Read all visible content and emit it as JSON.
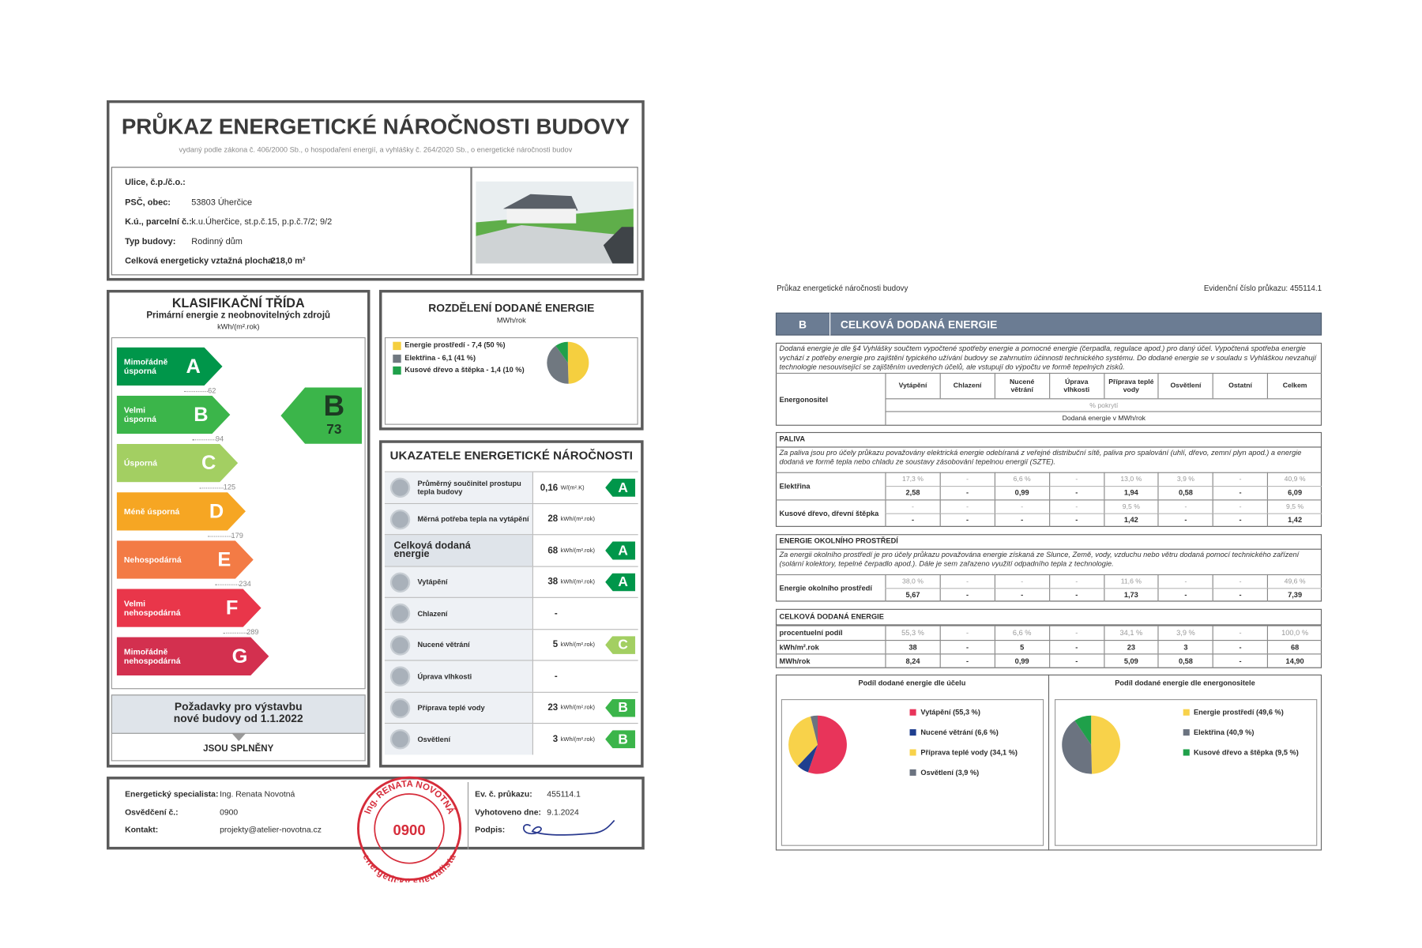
{
  "left": {
    "title": "PRŮKAZ ENERGETICKÉ NÁROČNOSTI BUDOVY",
    "subtitle": "vydaný podle zákona č. 406/2000 Sb., o hospodaření energií, a vyhlášky č. 264/2020 Sb., o energetické náročnosti budov",
    "address": [
      {
        "label": "Ulice, č.p./č.o.:"
      },
      {
        "label": "PSČ, obec:",
        "value": "53803 Úherčice"
      },
      {
        "label": "K.ú., parcelní č.:",
        "value": "k.u.Úherčice, st.p.č.15, p.p.č.7/2; 9/2"
      },
      {
        "label": "Typ budovy:",
        "value": "Rodinný dům"
      },
      {
        "label": "Celková energeticky vztažná plocha:",
        "value": "218,0 m²"
      }
    ],
    "classification": {
      "title": "KLASIFIKAČNÍ TŘÍDA",
      "subtitle": "Primární energie z neobnovitelných zdrojů",
      "unit": "kWh/(m².rok)",
      "classes": [
        {
          "letter": "A",
          "name": "Mimořádně\núsporná",
          "limit": 62,
          "color": "#00964a"
        },
        {
          "letter": "B",
          "name": "Velmi\núsporná",
          "limit": 94,
          "color": "#3bb54a"
        },
        {
          "letter": "C",
          "name": "Úsporná",
          "limit": 125,
          "color": "#a3cf62"
        },
        {
          "letter": "D",
          "name": "Méně úsporná",
          "limit": 179,
          "color": "#f6a623"
        },
        {
          "letter": "E",
          "name": "Nehospodárná",
          "limit": 234,
          "color": "#f37b45"
        },
        {
          "letter": "F",
          "name": "Velmi\nnehospodárná",
          "limit": 289,
          "color": "#e9364a"
        },
        {
          "letter": "G",
          "name": "Mimořádně\nnehospodárná",
          "color": "#d3304f"
        }
      ],
      "rating": {
        "letter": "B",
        "value": 73
      },
      "requirement": "Požadavky pro výstavbu\nnové budovy od 1.1.2022",
      "requirement_result": "JSOU SPLNĚNY"
    },
    "distribution": {
      "title": "ROZDĚLENÍ DODANÉ ENERGIE",
      "unit": "MWh/rok",
      "items": [
        {
          "label": "Energie prostředí - 7,4 (50 %)",
          "value": 50,
          "color": "#f5cf3f"
        },
        {
          "label": "Elektřina - 6,1 (41 %)",
          "value": 41,
          "color": "#707880"
        },
        {
          "label": "Kusové dřevo a štěpka - 1,4 (10 %)",
          "value": 10,
          "color": "#1fa04a"
        }
      ]
    },
    "indicators": {
      "title": "UKAZATELE ENERGETICKÉ NÁROČNOSTI",
      "rows": [
        {
          "label": "Průměrný součinitel prostupu tepla budovy",
          "value": "0,16",
          "unit": "W/(m².K)",
          "class": "A"
        },
        {
          "label": "Měrná potřeba tepla na vytápění",
          "value": "28",
          "unit": "kWh/(m².rok)"
        },
        {
          "label": "Celková dodaná energie",
          "value": "68",
          "unit": "kWh/(m².rok)",
          "class": "A"
        },
        {
          "label": "Vytápění",
          "value": "38",
          "unit": "kWh/(m².rok)",
          "class": "A"
        },
        {
          "label": "Chlazení",
          "value": "-"
        },
        {
          "label": "Nucené větrání",
          "value": "5",
          "unit": "kWh/(m².rok)",
          "class": "C"
        },
        {
          "label": "Úprava vlhkosti",
          "value": "-"
        },
        {
          "label": "Příprava teplé vody",
          "value": "23",
          "unit": "kWh/(m².rok)",
          "class": "B"
        },
        {
          "label": "Osvětlení",
          "value": "3",
          "unit": "kWh/(m².rok)",
          "class": "B"
        }
      ]
    },
    "signature": {
      "fields": [
        {
          "label": "Energetický specialista:",
          "value": "Ing. Renata Novotná"
        },
        {
          "label": "Osvědčení č.:",
          "value": "0900"
        },
        {
          "label": "Kontakt:",
          "value": "projekty@atelier-novotna.cz"
        }
      ],
      "fields_right": [
        {
          "label": "Ev. č. průkazu:",
          "value": "455114.1"
        },
        {
          "label": "Vyhotoveno dne:",
          "value": "9.1.2024"
        },
        {
          "label": "Podpis:"
        }
      ],
      "stamp": {
        "top": "Ing. RENATA NOVOTNÁ",
        "number": "0900",
        "bottom": "energetický specialista"
      }
    }
  },
  "right": {
    "header_left": "Průkaz energetické náročnosti budovy",
    "header_right": "Evidenční číslo průkazu: 455114.1",
    "section_letter": "B",
    "section_title": "CELKOVÁ DODANÁ ENERGIE",
    "intro": "Dodaná energie je dle §4 Vyhlášky součtem vypočtené spotřeby energie a pomocné energie (čerpadla, regulace apod.) pro daný účel. Vypočtená spotřeba energie vychází z potřeby energie pro zajištění typického užívání budovy se zahrnutím účinnosti technického systému. Do dodané energie se v souladu s Vyhláškou nevzahují technologie nesouvisející se zajištěním uvedených účelů, ale vstupují do výpočtu ve formě tepelných zisků.",
    "table_header": {
      "first": "Energonositel",
      "columns": [
        "Vytápění",
        "Chlazení",
        "Nucené větrání",
        "Úprava vlhkosti",
        "Příprava teplé vody",
        "Osvětlení",
        "Ostatní",
        "Celkem"
      ],
      "sub1": "% pokrytí",
      "sub2": "Dodaná energie v MWh/rok"
    },
    "sections": [
      {
        "title": "PALIVA",
        "note": "Za paliva jsou pro účely průkazu považovány elektrická energie odebíraná z veřejné distribuční sítě, paliva pro spalování (uhlí, dřevo, zemní plyn apod.) a energie dodaná ve formě tepla nebo chladu ze soustavy zásobování tepelnou energií (SZTE).",
        "rows": [
          {
            "label": "Elektřina",
            "pct": [
              "17,3 %",
              "-",
              "6,6 %",
              "-",
              "13,0 %",
              "3,9 %",
              "-",
              "40,9 %"
            ],
            "values": [
              "2,58",
              "-",
              "0,99",
              "-",
              "1,94",
              "0,58",
              "-",
              "6,09"
            ]
          },
          {
            "label": "Kusové dřevo, dřevní štěpka",
            "pct": [
              "-",
              "-",
              "-",
              "-",
              "9,5 %",
              "-",
              "-",
              "9,5 %"
            ],
            "values": [
              "-",
              "-",
              "-",
              "-",
              "1,42",
              "-",
              "-",
              "1,42"
            ]
          }
        ]
      },
      {
        "title": "ENERGIE OKOLNÍHO PROSTŘEDÍ",
        "note": "Za energii okolního prostředí je pro účely průkazu považována energie získaná ze Slunce, Země, vody, vzduchu nebo větru dodaná pomocí technického zařízení (solární kolektory, tepelné čerpadlo apod.). Dále je sem zařazeno využití odpadního tepla z technologie.",
        "rows": [
          {
            "label": "Energie okolního prostředí",
            "pct": [
              "38,0 %",
              "-",
              "-",
              "-",
              "11,6 %",
              "-",
              "-",
              "49,6 %"
            ],
            "values": [
              "5,67",
              "-",
              "-",
              "-",
              "1,73",
              "-",
              "-",
              "7,39"
            ]
          }
        ]
      }
    ],
    "total": {
      "title": "CELKOVÁ DODANÁ ENERGIE",
      "rows": [
        {
          "label": "procentuelní podíl",
          "values": [
            "55,3 %",
            "-",
            "6,6 %",
            "-",
            "34,1 %",
            "3,9 %",
            "-",
            "100,0 %"
          ]
        },
        {
          "label": "kWh/m².rok",
          "values": [
            "38",
            "-",
            "5",
            "-",
            "23",
            "3",
            "-",
            "68"
          ]
        },
        {
          "label": "MWh/rok",
          "values": [
            "8,24",
            "-",
            "0,99",
            "-",
            "5,09",
            "0,58",
            "-",
            "14,90"
          ]
        }
      ]
    },
    "pies": [
      {
        "title": "Podíl dodané energie dle účelu",
        "items": [
          {
            "label": "Vytápění (55,3 %)",
            "value": 55.3,
            "color": "#e8345a"
          },
          {
            "label": "Nucené větrání (6,6 %)",
            "value": 6.6,
            "color": "#1f3f8f"
          },
          {
            "label": "Příprava teplé vody (34,1 %)",
            "value": 34.1,
            "color": "#f8d24a"
          },
          {
            "label": "Osvětlení (3,9 %)",
            "value": 3.9,
            "color": "#6b7380"
          }
        ]
      },
      {
        "title": "Podíl dodané energie dle energonositele",
        "items": [
          {
            "label": "Energie prostředí (49,6 %)",
            "value": 49.6,
            "color": "#f8d24a"
          },
          {
            "label": "Elektřina (40,9 %)",
            "value": 40.9,
            "color": "#6b7380"
          },
          {
            "label": "Kusové dřevo a štěpka (9,5 %)",
            "value": 9.5,
            "color": "#1fa04a"
          }
        ]
      }
    ]
  }
}
